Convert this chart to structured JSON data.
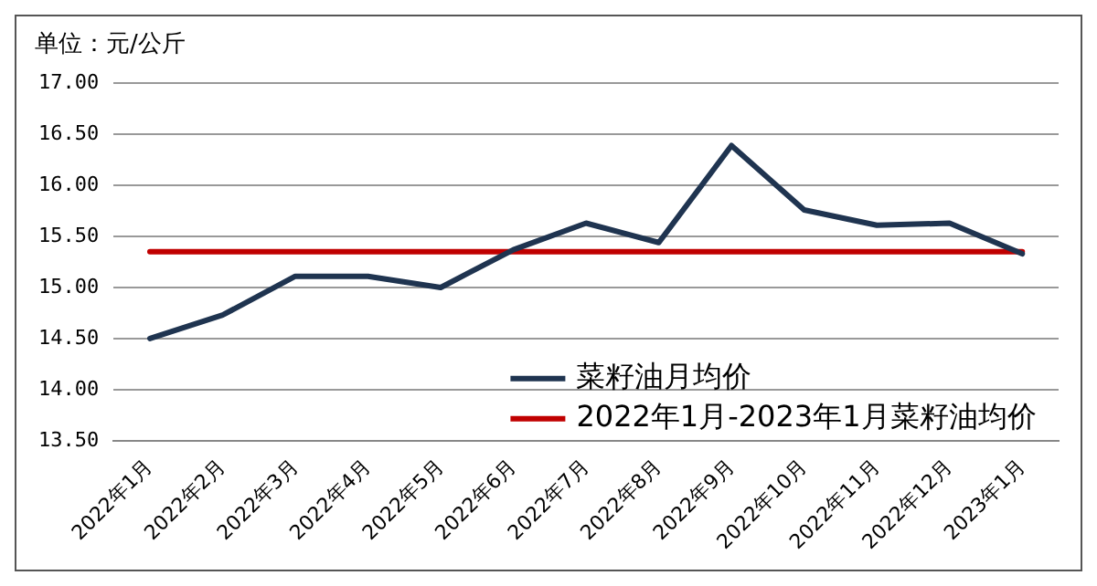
{
  "chart_data": {
    "type": "line",
    "ylabel": "单位：元/公斤",
    "categories": [
      "2022年1月",
      "2022年2月",
      "2022年3月",
      "2022年4月",
      "2022年5月",
      "2022年6月",
      "2022年7月",
      "2022年8月",
      "2022年9月",
      "2022年10月",
      "2022年11月",
      "2022年12月",
      "2023年1月"
    ],
    "series": [
      {
        "name": "菜籽油月均价",
        "color": "#1f3450",
        "values": [
          14.5,
          14.73,
          15.11,
          15.11,
          15.0,
          15.37,
          15.63,
          15.44,
          16.39,
          15.76,
          15.61,
          15.63,
          15.33
        ]
      },
      {
        "name": "2022年1月-2023年1月菜籽油均价",
        "color": "#c00000",
        "values": [
          15.35,
          15.35,
          15.35,
          15.35,
          15.35,
          15.35,
          15.35,
          15.35,
          15.35,
          15.35,
          15.35,
          15.35,
          15.35
        ]
      }
    ],
    "ylim": [
      13.5,
      17
    ],
    "yticks": [
      {
        "value": 13.5,
        "label": "13.50"
      },
      {
        "value": 14,
        "label": "14.00"
      },
      {
        "value": 14.5,
        "label": "14.50"
      },
      {
        "value": 15,
        "label": "15.00"
      },
      {
        "value": 15.5,
        "label": "15.50"
      },
      {
        "value": 16,
        "label": "16.00"
      },
      {
        "value": 16.5,
        "label": "16.50"
      },
      {
        "value": 17,
        "label": "17.00"
      }
    ],
    "grid": "y",
    "legend": "bottom",
    "marker": "none",
    "line_style": "solid"
  }
}
